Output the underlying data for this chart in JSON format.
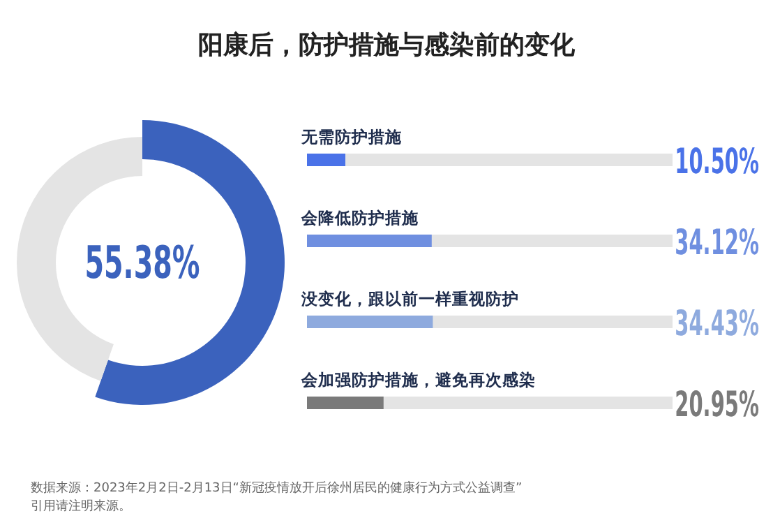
{
  "chart_data": [
    {
      "type": "donut",
      "title": "阳康后，防护措施与感染前的变化",
      "categories": [
        null,
        null
      ],
      "values": [
        55.38,
        44.62
      ],
      "colors": [
        "#3b62bd",
        "#e4e4e4"
      ],
      "value_labels": [
        "55.38%",
        null
      ],
      "annotations": [
        "数据来源：2023年2月2日-2月13日“新冠疫情放开后徐州居民的健康行为方式公益调查”",
        "引用请注明来源。"
      ]
    },
    {
      "type": "bar",
      "orientation": "horizontal",
      "categories": [
        "无需防护措施",
        "会降低防护措施",
        "没变化，跟以前一样重视防护",
        "会加强防护措施，避免再次感染"
      ],
      "values": [
        10.5,
        34.12,
        34.43,
        20.95
      ],
      "colors": [
        "#4a72e8",
        "#6f8fe0",
        "#8eaade",
        "#7a7a7a"
      ],
      "xlim": [
        0,
        100
      ],
      "value_labels": [
        "10.50%",
        "34.12%",
        "34.43%",
        "20.95%"
      ]
    }
  ]
}
